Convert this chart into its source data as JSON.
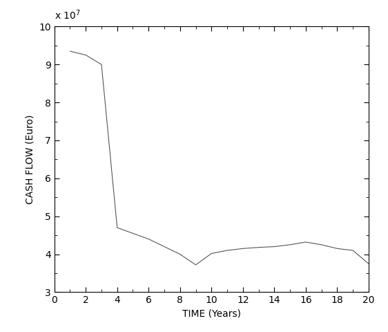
{
  "x": [
    1,
    2,
    3,
    4,
    5,
    6,
    7,
    8,
    9,
    10,
    11,
    12,
    13,
    14,
    15,
    16,
    17,
    18,
    19,
    20
  ],
  "y": [
    93500000.0,
    92500000.0,
    90000000.0,
    47000000.0,
    45500000.0,
    44000000.0,
    42000000.0,
    40000000.0,
    37200000.0,
    40200000.0,
    41000000.0,
    41500000.0,
    41800000.0,
    42000000.0,
    42500000.0,
    43200000.0,
    42500000.0,
    41500000.0,
    41000000.0,
    37500000.0
  ],
  "xlim": [
    0,
    20
  ],
  "ylim": [
    30000000.0,
    100000000.0
  ],
  "xticks": [
    0,
    2,
    4,
    6,
    8,
    10,
    12,
    14,
    16,
    18,
    20
  ],
  "yticks": [
    30000000.0,
    40000000.0,
    50000000.0,
    60000000.0,
    70000000.0,
    80000000.0,
    90000000.0,
    100000000.0
  ],
  "ytick_labels": [
    "3",
    "4",
    "5",
    "6",
    "7",
    "8",
    "9",
    "10"
  ],
  "xlabel": "TIME (Years)",
  "ylabel": "CASH FLOW (Euro)",
  "line_color": "#555555",
  "line_width": 0.8,
  "background_color": "#ffffff",
  "exponent_label": "x 10$^{7}$",
  "tick_fontsize": 10,
  "label_fontsize": 10
}
